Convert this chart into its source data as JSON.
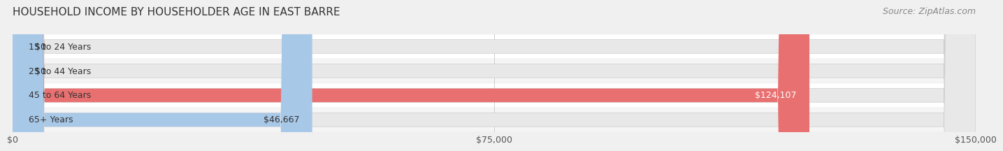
{
  "title": "HOUSEHOLD INCOME BY HOUSEHOLDER AGE IN EAST BARRE",
  "source": "Source: ZipAtlas.com",
  "categories": [
    "15 to 24 Years",
    "25 to 44 Years",
    "45 to 64 Years",
    "65+ Years"
  ],
  "values": [
    0,
    0,
    124107,
    46667
  ],
  "bar_colors": [
    "#f4a0a8",
    "#f5c98a",
    "#e87070",
    "#a8c8e8"
  ],
  "label_colors": [
    "#333333",
    "#333333",
    "#ffffff",
    "#333333"
  ],
  "value_labels": [
    "$0",
    "$0",
    "$124,107",
    "$46,667"
  ],
  "xlim": [
    0,
    150000
  ],
  "xticks": [
    0,
    75000,
    150000
  ],
  "xtick_labels": [
    "$0",
    "$75,000",
    "$150,000"
  ],
  "bar_height": 0.55,
  "background_color": "#f0f0f0",
  "bar_bg_color": "#efefef",
  "title_fontsize": 11,
  "source_fontsize": 9,
  "tick_fontsize": 9,
  "label_fontsize": 9,
  "category_fontsize": 9
}
